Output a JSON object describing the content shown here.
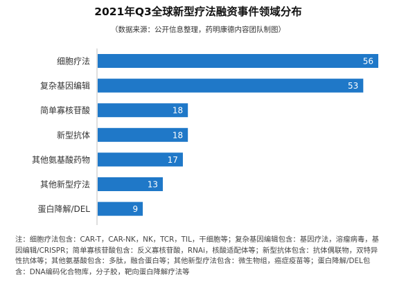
{
  "chart_data": {
    "type": "bar",
    "orientation": "horizontal",
    "title": "2021年Q3全球新型疗法融资事件领域分布",
    "subtitle": "（数据来源：公开信息整理，药明康德内容团队制图）",
    "categories": [
      "细胞疗法",
      "复杂基因编辑",
      "简单寡核苷酸",
      "新型抗体",
      "其他氨基酸药物",
      "其他新型疗法",
      "蛋白降解/DEL"
    ],
    "values": [
      56,
      53,
      18,
      18,
      17,
      13,
      9
    ],
    "xlim": [
      0,
      56
    ],
    "bar_color": "#1f78c8",
    "label_color": "#ffffff",
    "grid": false,
    "legend": "none"
  },
  "note": "注：细胞疗法包含：CAR-T，CAR-NK，NK，TCR，TIL，干细胞等；复杂基因编辑包含：基因疗法，溶瘤病毒，基因编辑/CRISPR；简单寡核苷酸包含：反义寡核苷酸，RNAi，核酸适配体等；新型抗体包含：抗体偶联物，双特异性抗体等；其他氨基酸包含：多肽，融合蛋白等；其他新型疗法包含：微生物组，癌症疫苗等；蛋白降解/DEL包含：DNA编码化合物库，分子胶，靶向蛋白降解疗法等"
}
